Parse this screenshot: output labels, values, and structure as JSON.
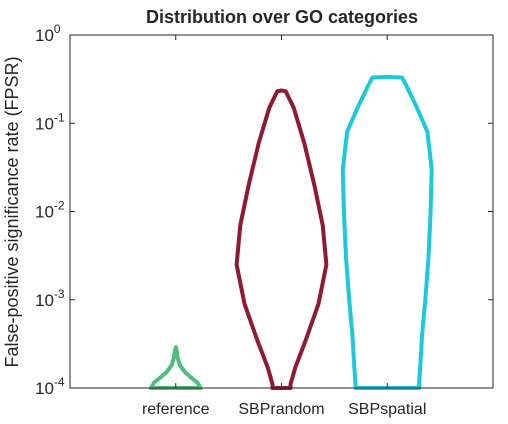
{
  "chart_data": {
    "type": "violin",
    "title": "Distribution over GO categories",
    "xlabel": "",
    "ylabel": "False-positive significance rate (FPSR)",
    "yscale": "log",
    "ylim": [
      0.0001,
      1
    ],
    "yticks": [
      {
        "value": 0.0001,
        "base": "10",
        "exp": "-4"
      },
      {
        "value": 0.001,
        "base": "10",
        "exp": "-3"
      },
      {
        "value": 0.01,
        "base": "10",
        "exp": "-2"
      },
      {
        "value": 0.1,
        "base": "10",
        "exp": "-1"
      },
      {
        "value": 1,
        "base": "10",
        "exp": "0"
      }
    ],
    "grid": false,
    "categories": [
      "reference",
      "SBPrandom",
      "SBPspatial"
    ],
    "series": [
      {
        "category": "reference",
        "color": "#4dbf7a",
        "profile": [
          {
            "y": 0.0001,
            "w": 0.47
          },
          {
            "y": 0.000115,
            "w": 0.41
          },
          {
            "y": 0.00013,
            "w": 0.3
          },
          {
            "y": 0.00015,
            "w": 0.18
          },
          {
            "y": 0.00018,
            "w": 0.08
          },
          {
            "y": 0.00022,
            "w": 0.035
          },
          {
            "y": 0.00026,
            "w": 0.02
          },
          {
            "y": 0.00029,
            "w": 0.0
          }
        ]
      },
      {
        "category": "SBPrandom",
        "color": "#8f1a33",
        "profile": [
          {
            "y": 0.0001,
            "w": 0.17
          },
          {
            "y": 0.00011,
            "w": 0.17
          },
          {
            "y": 0.00017,
            "w": 0.26
          },
          {
            "y": 0.00035,
            "w": 0.46
          },
          {
            "y": 0.0009,
            "w": 0.7
          },
          {
            "y": 0.0025,
            "w": 0.85
          },
          {
            "y": 0.007,
            "w": 0.78
          },
          {
            "y": 0.02,
            "w": 0.62
          },
          {
            "y": 0.06,
            "w": 0.43
          },
          {
            "y": 0.15,
            "w": 0.23
          },
          {
            "y": 0.23,
            "w": 0.08
          },
          {
            "y": 0.235,
            "w": 0.0
          }
        ]
      },
      {
        "category": "SBPspatial",
        "color": "#1ec8dc",
        "profile": [
          {
            "y": 0.0001,
            "w": 0.6
          },
          {
            "y": 0.00011,
            "w": 0.6
          },
          {
            "y": 0.00016,
            "w": 0.62
          },
          {
            "y": 0.0004,
            "w": 0.66
          },
          {
            "y": 0.001,
            "w": 0.72
          },
          {
            "y": 0.003,
            "w": 0.78
          },
          {
            "y": 0.01,
            "w": 0.82
          },
          {
            "y": 0.03,
            "w": 0.84
          },
          {
            "y": 0.08,
            "w": 0.76
          },
          {
            "y": 0.16,
            "w": 0.54
          },
          {
            "y": 0.26,
            "w": 0.37
          },
          {
            "y": 0.33,
            "w": 0.28
          },
          {
            "y": 0.335,
            "w": 0.0
          }
        ]
      }
    ]
  }
}
